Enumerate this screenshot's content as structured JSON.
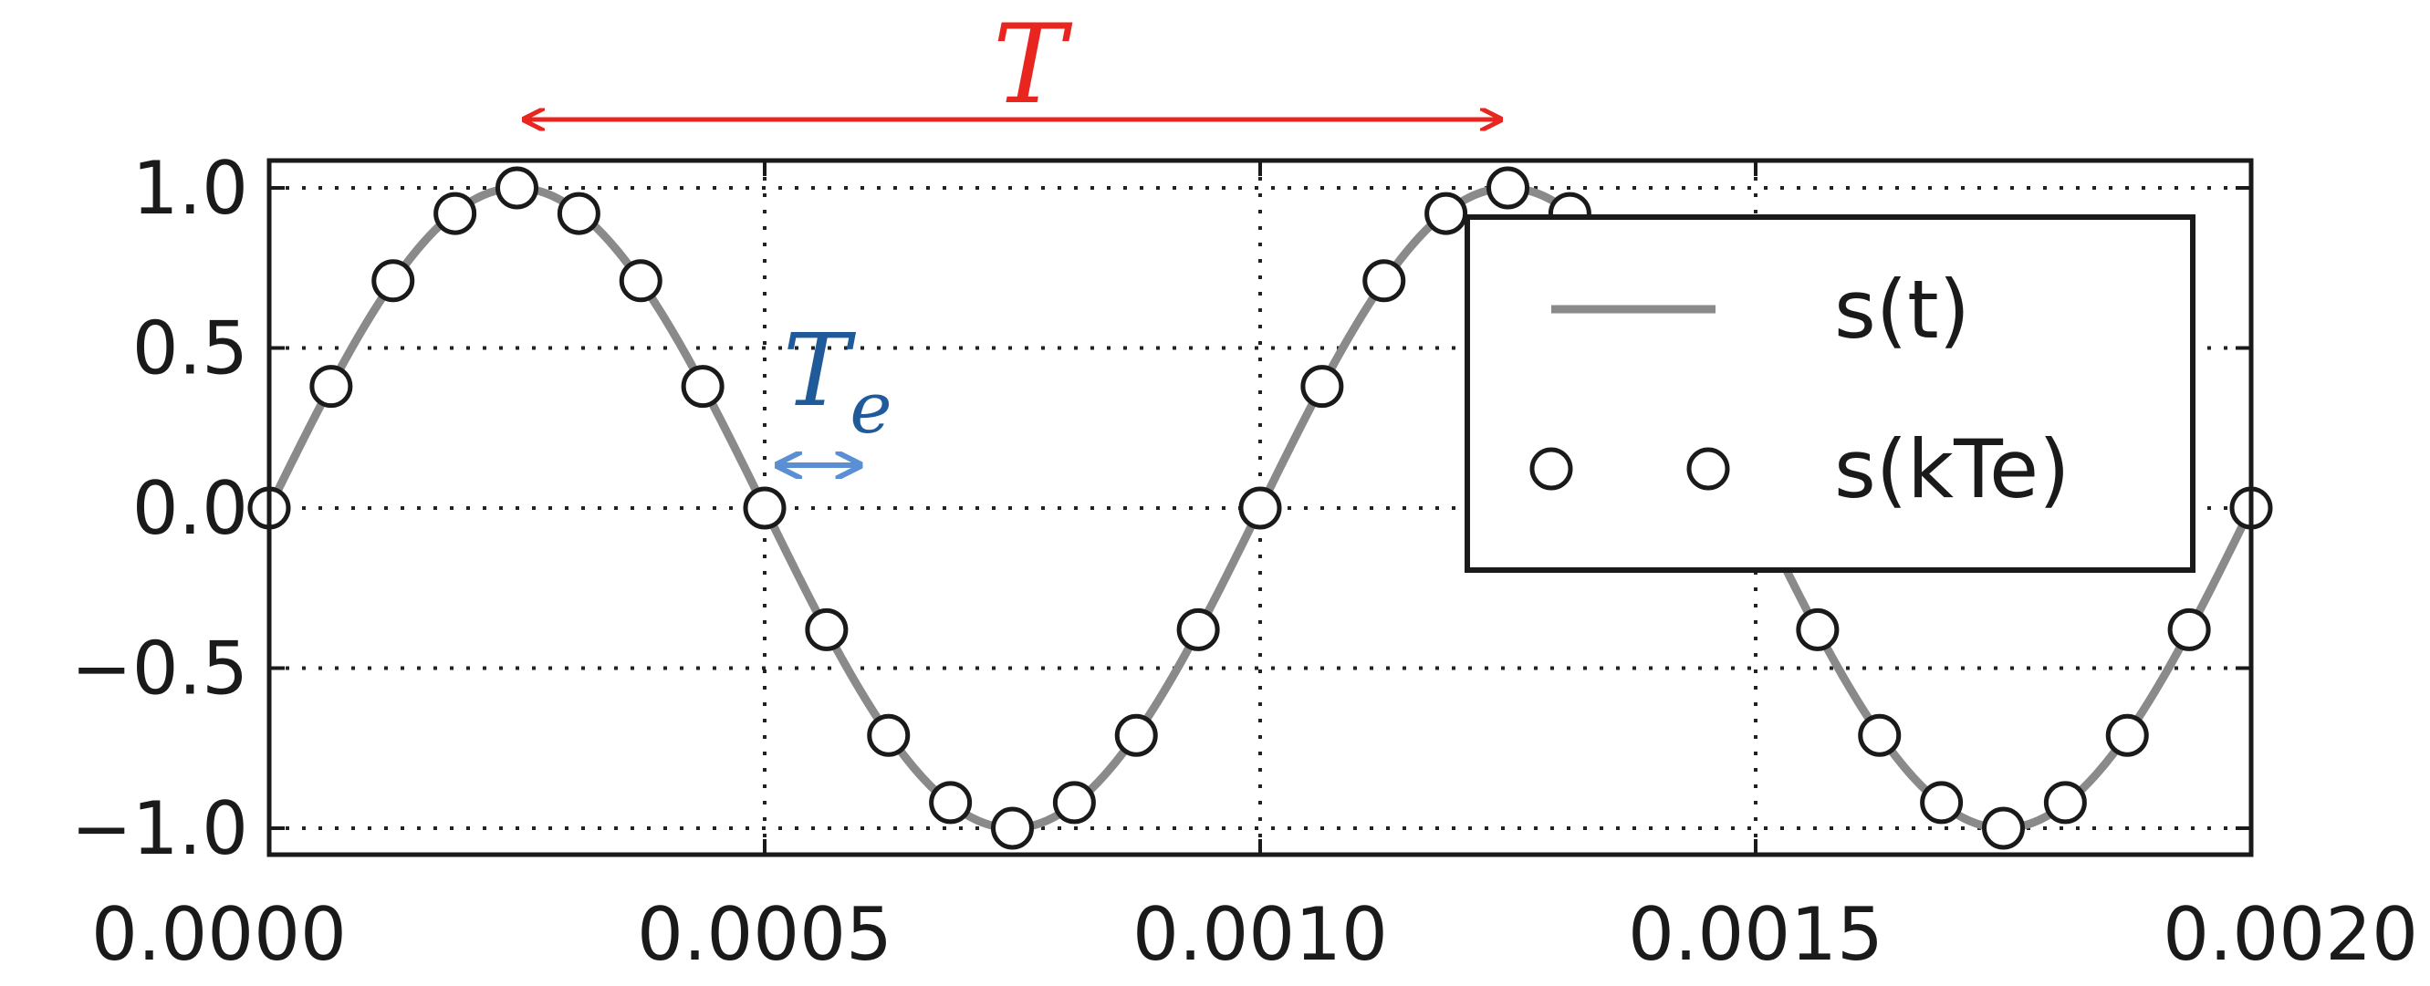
{
  "chart_data": {
    "type": "line",
    "title": "",
    "xlabel": "",
    "ylabel": "",
    "xlim": [
      0,
      0.002
    ],
    "ylim": [
      -1.05,
      1.05
    ],
    "grid": true,
    "legend_position": "upper-right",
    "x_ticks": [
      "0.0000",
      "0.0005",
      "0.0010",
      "0.0015",
      "0.0020"
    ],
    "x_tick_values": [
      0,
      0.0005,
      0.001,
      0.0015,
      0.002
    ],
    "y_ticks": [
      "1.0",
      "0.5",
      "0.0",
      "−0.5",
      "−1.0"
    ],
    "y_tick_values": [
      1.0,
      0.5,
      0.0,
      -0.5,
      -1.0
    ],
    "series": [
      {
        "name": "s(t)",
        "style": "line",
        "function": "sin(2*pi*f*t)",
        "frequency_hz": 1000,
        "color": "#7f7f7f"
      },
      {
        "name": "s(kTe)",
        "style": "markers",
        "marker": "open-circle",
        "color": "#1a1a1a",
        "x": [
          0,
          6.25e-05,
          0.000125,
          0.0001875,
          0.00025,
          0.0003125,
          0.000375,
          0.0004375,
          0.0005,
          0.0005625,
          0.000625,
          0.0006875,
          0.00075,
          0.0008125,
          0.000875,
          0.0009375,
          0.001,
          0.0010625,
          0.001125,
          0.0011875,
          0.00125,
          0.0013125,
          0.001375,
          0.0014375,
          0.0015,
          0.0015625,
          0.001625,
          0.0016875,
          0.00175,
          0.0018125,
          0.001875,
          0.0019375,
          0.002
        ],
        "y": [
          0,
          0.38,
          0.71,
          0.92,
          1.0,
          0.92,
          0.71,
          0.38,
          0,
          -0.38,
          -0.71,
          -0.92,
          -1.0,
          -0.92,
          -0.71,
          -0.38,
          0,
          0.38,
          0.71,
          0.92,
          1.0,
          0.92,
          0.71,
          0.38,
          0,
          -0.38,
          -0.71,
          -0.92,
          -1.0,
          -0.92,
          -0.71,
          -0.38,
          0
        ]
      }
    ],
    "annotations": [
      {
        "id": "period",
        "text": "T",
        "color": "#e8251f",
        "from_x": 0.00025,
        "to_x": 0.00125
      },
      {
        "id": "sampling-period",
        "text": "T",
        "subscript": "e",
        "color": "#1f5a9b",
        "arrow_color": "#5b8fd4",
        "from_x": 0.0005,
        "to_x": 0.0006
      }
    ]
  }
}
